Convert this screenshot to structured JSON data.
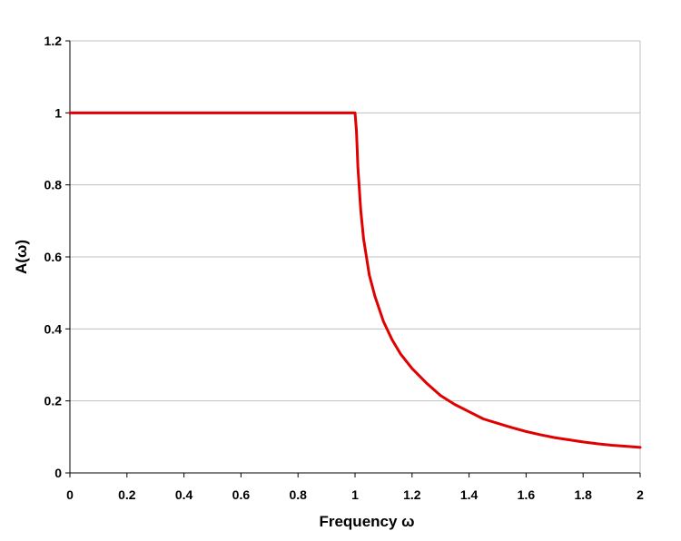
{
  "chart_data": {
    "type": "line",
    "title": "",
    "xlabel": "Frequency ω",
    "ylabel": "A(ω)",
    "xlim": [
      0,
      2
    ],
    "ylim": [
      0,
      1.2
    ],
    "x_ticks": [
      "0",
      "0.2",
      "0.4",
      "0.6",
      "0.8",
      "1",
      "1.2",
      "1.4",
      "1.6",
      "1.8",
      "2"
    ],
    "y_ticks": [
      "0",
      "0.2",
      "0.4",
      "0.6",
      "0.8",
      "1",
      "1.2"
    ],
    "grid": "horizontal",
    "legend": "none",
    "series": [
      {
        "color": "#e00000",
        "x": [
          0,
          0.2,
          0.4,
          0.6,
          0.8,
          1.0,
          1.005,
          1.01,
          1.02,
          1.03,
          1.05,
          1.07,
          1.1,
          1.13,
          1.16,
          1.2,
          1.25,
          1.3,
          1.35,
          1.4,
          1.45,
          1.5,
          1.55,
          1.6,
          1.65,
          1.7,
          1.75,
          1.8,
          1.85,
          1.9,
          1.95,
          2.0
        ],
        "y": [
          1,
          1,
          1,
          1,
          1,
          1,
          0.95,
          0.85,
          0.73,
          0.65,
          0.55,
          0.49,
          0.42,
          0.37,
          0.33,
          0.29,
          0.25,
          0.215,
          0.19,
          0.17,
          0.15,
          0.138,
          0.126,
          0.115,
          0.106,
          0.098,
          0.092,
          0.086,
          0.081,
          0.077,
          0.074,
          0.071
        ]
      }
    ]
  }
}
